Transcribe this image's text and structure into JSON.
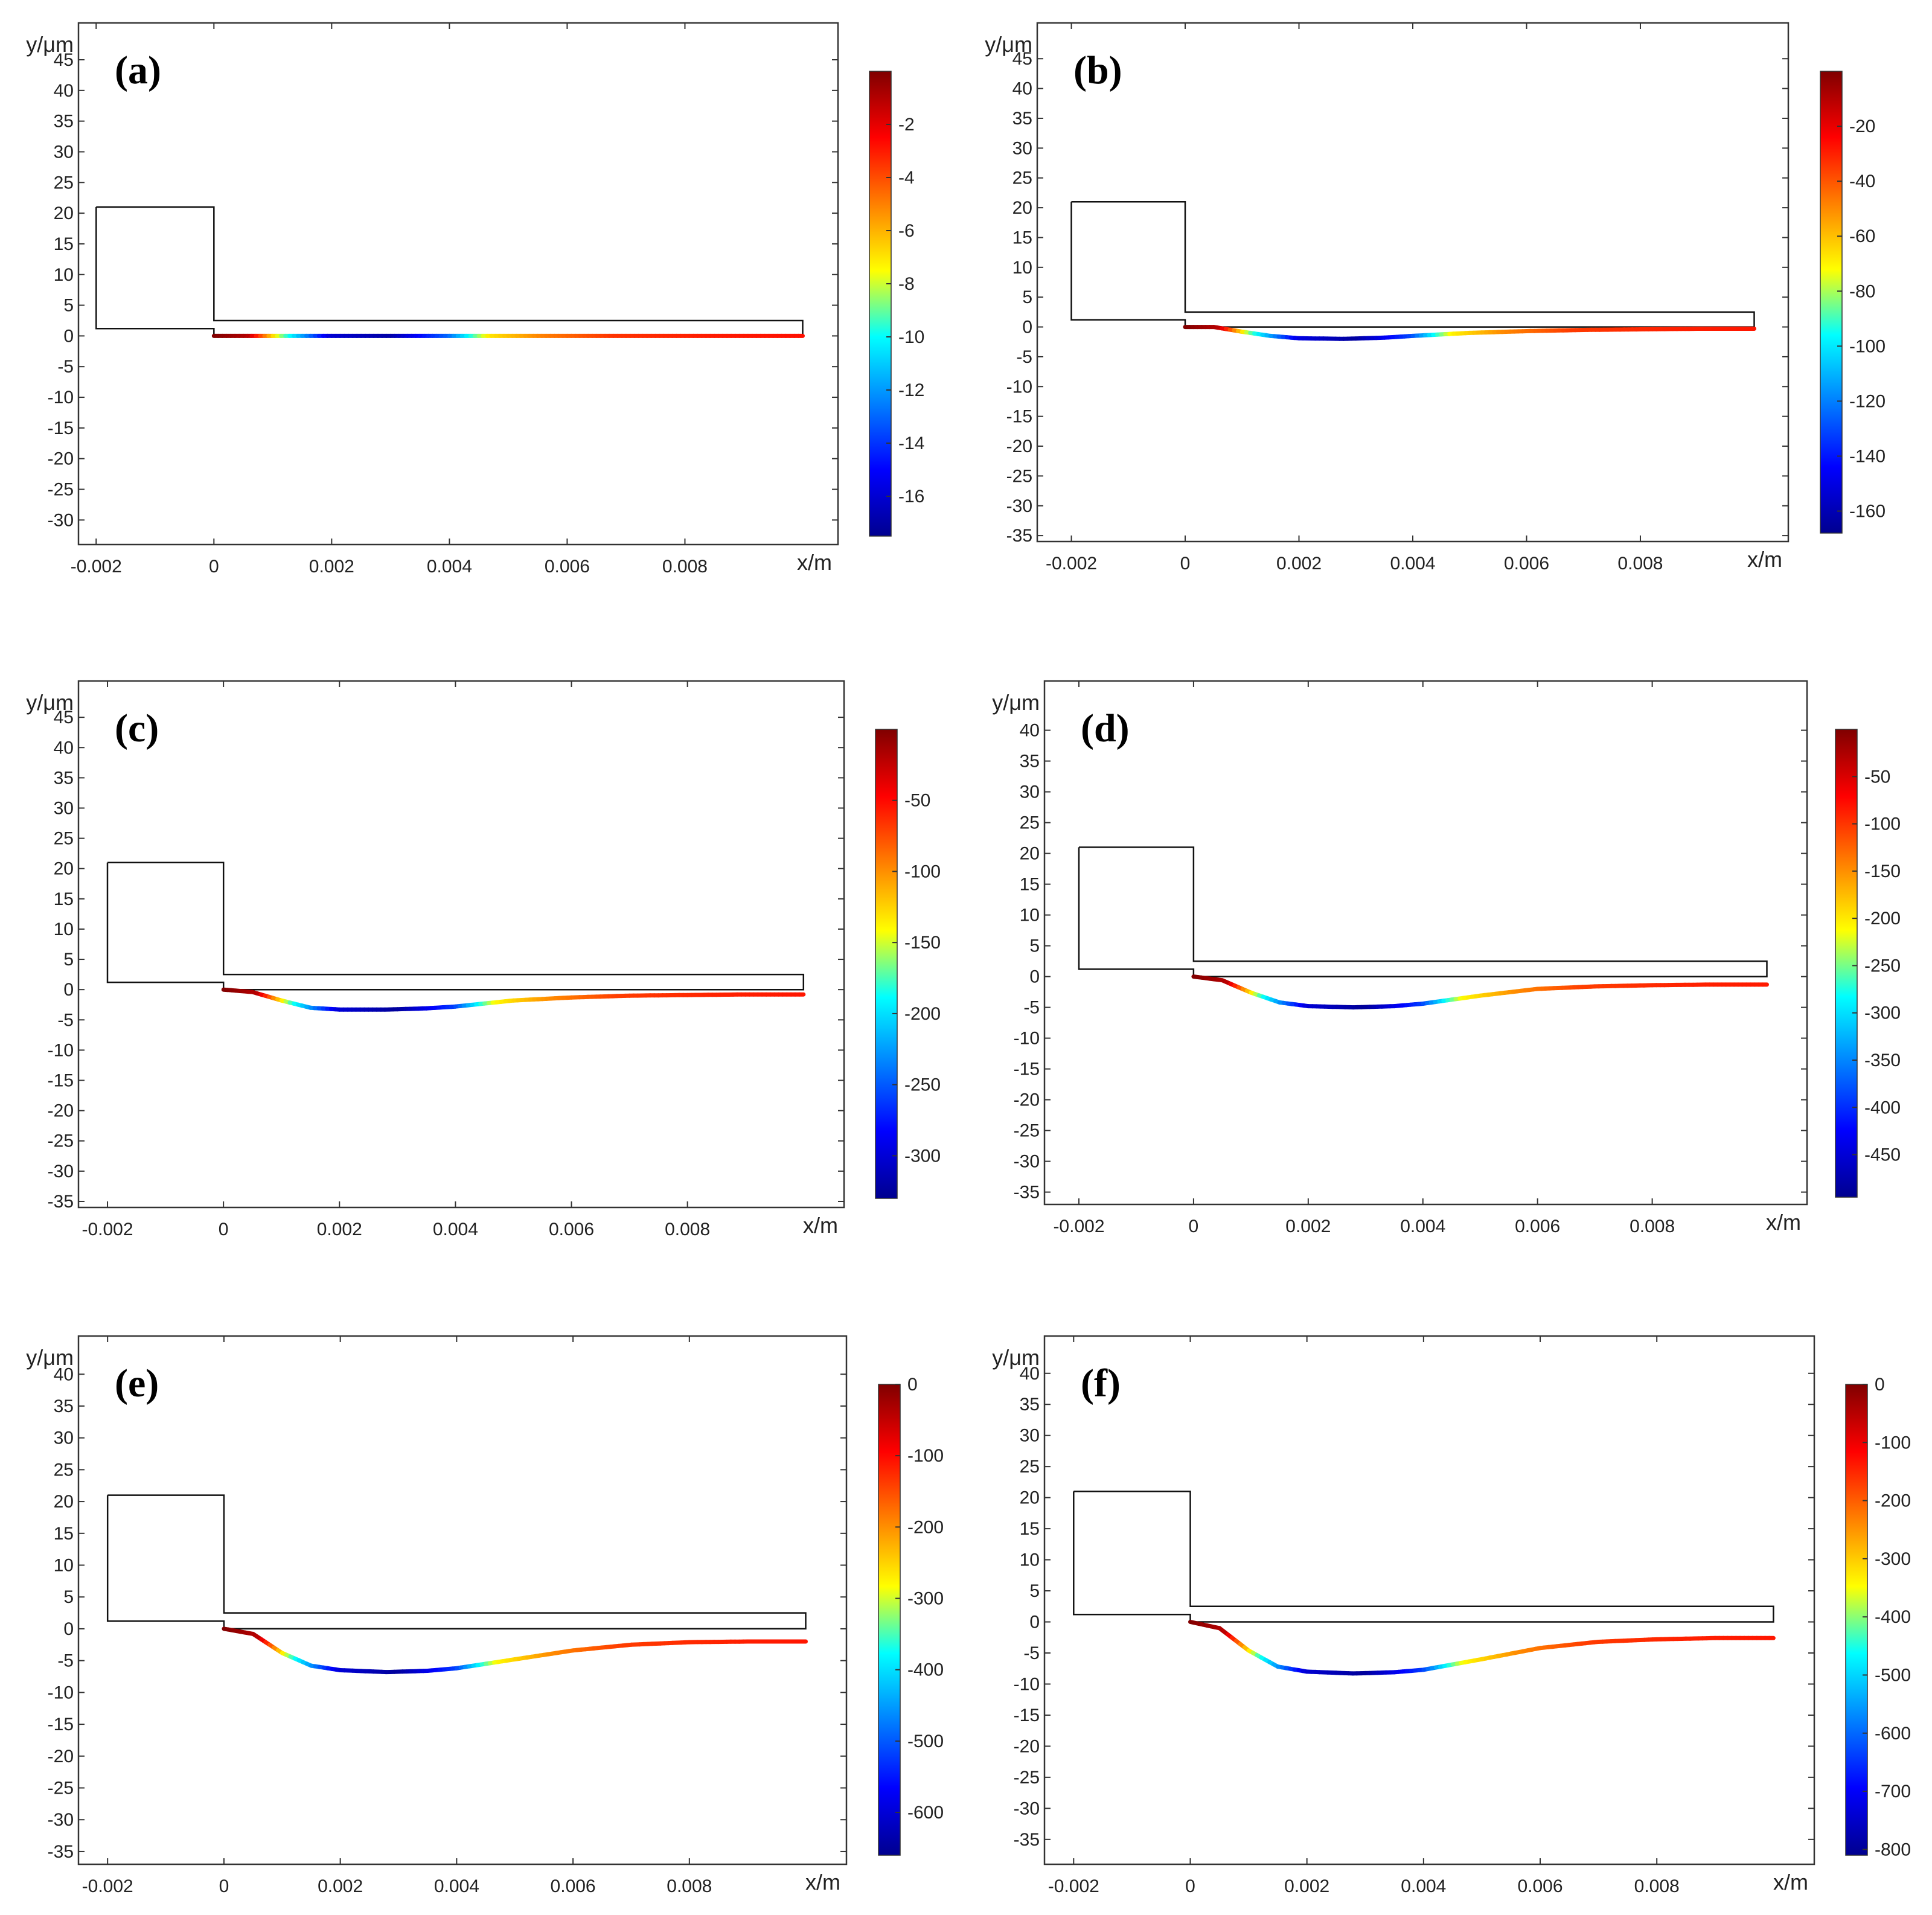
{
  "figure": {
    "panel_count": 6,
    "colormap": [
      "#800000",
      "#ff0000",
      "#ff8000",
      "#ffff00",
      "#00ffff",
      "#0080ff",
      "#0000ff",
      "#00008f"
    ]
  },
  "chart_data": [
    {
      "type": "line",
      "label": "(a)",
      "xlabel": "x/m",
      "ylabel": "y/μm",
      "xlim": [
        -0.0023,
        0.0106
      ],
      "ylim": [
        -34,
        51
      ],
      "x_ticks": [
        "-0.002",
        "0",
        "0.002",
        "0.004",
        "0.006",
        "0.008"
      ],
      "x_tick_values": [
        -0.002,
        0,
        0.002,
        0.004,
        0.006,
        0.008
      ],
      "y_ticks": [
        45,
        40,
        35,
        30,
        25,
        20,
        15,
        10,
        5,
        0,
        -5,
        -10,
        -15,
        -20,
        -25,
        -30
      ],
      "outline": {
        "x": [
          -0.002,
          0,
          0,
          0.01,
          0.01,
          0,
          0,
          -0.002,
          -0.002
        ],
        "y": [
          21,
          21,
          2.5,
          2.5,
          0,
          0,
          1.2,
          1.2,
          21
        ]
      },
      "deflection": {
        "x": [
          0,
          0.0005,
          0.001,
          0.002,
          0.003,
          0.004,
          0.005,
          0.006,
          0.007,
          0.008,
          0.009,
          0.01
        ],
        "y": [
          0,
          0,
          0,
          0,
          0,
          0,
          0,
          0,
          0,
          0,
          0,
          0
        ]
      },
      "colorbar": {
        "min": -17.5,
        "max": 0,
        "ticks": [
          -2,
          -4,
          -6,
          -8,
          -10,
          -12,
          -14,
          -16
        ]
      },
      "field": {
        "x": [
          0,
          0.0006,
          0.0012,
          0.002,
          0.003,
          0.004,
          0.0047,
          0.0056,
          0.0068,
          0.0085,
          0.01
        ],
        "v": [
          0,
          -1,
          -9,
          -16,
          -17,
          -13,
          -7,
          -5,
          -3.5,
          -3,
          -2.8
        ]
      }
    },
    {
      "type": "line",
      "label": "(b)",
      "xlabel": "x/m",
      "ylabel": "y/μm",
      "xlim": [
        -0.0026,
        0.0106
      ],
      "ylim": [
        -36,
        51
      ],
      "x_ticks": [
        "-0.002",
        "0",
        "0.002",
        "0.004",
        "0.006",
        "0.008"
      ],
      "x_tick_values": [
        -0.002,
        0,
        0.002,
        0.004,
        0.006,
        0.008
      ],
      "y_ticks": [
        45,
        40,
        35,
        30,
        25,
        20,
        15,
        10,
        5,
        0,
        -5,
        -10,
        -15,
        -20,
        -25,
        -30,
        -35
      ],
      "outline": {
        "x": [
          -0.002,
          0,
          0,
          0.01,
          0.01,
          0,
          0,
          -0.002,
          -0.002
        ],
        "y": [
          21,
          21,
          2.5,
          2.5,
          0,
          0,
          1.2,
          1.2,
          21
        ]
      },
      "deflection": {
        "x": [
          0,
          0.0005,
          0.001,
          0.0015,
          0.002,
          0.0028,
          0.0035,
          0.004,
          0.005,
          0.006,
          0.007,
          0.008,
          0.009,
          0.01
        ],
        "y": [
          0,
          0,
          -0.8,
          -1.5,
          -1.9,
          -2.0,
          -1.8,
          -1.5,
          -1.0,
          -0.7,
          -0.5,
          -0.4,
          -0.3,
          -0.3
        ]
      },
      "colorbar": {
        "min": -168,
        "max": 0,
        "ticks": [
          -20,
          -40,
          -60,
          -80,
          -100,
          -120,
          -140,
          -160
        ]
      },
      "field": {
        "x": [
          0,
          0.0006,
          0.0012,
          0.002,
          0.003,
          0.004,
          0.0047,
          0.0056,
          0.0068,
          0.0085,
          0.01
        ],
        "v": [
          0,
          -10,
          -90,
          -150,
          -165,
          -130,
          -70,
          -50,
          -35,
          -30,
          -28
        ]
      }
    },
    {
      "type": "line",
      "label": "(c)",
      "xlabel": "x/m",
      "ylabel": "y/μm",
      "xlim": [
        -0.0025,
        0.0107
      ],
      "ylim": [
        -36,
        51
      ],
      "x_ticks": [
        "-0.002",
        "0",
        "0.002",
        "0.004",
        "0.006",
        "0.008"
      ],
      "x_tick_values": [
        -0.002,
        0,
        0.002,
        0.004,
        0.006,
        0.008
      ],
      "y_ticks": [
        45,
        40,
        35,
        30,
        25,
        20,
        15,
        10,
        5,
        0,
        -5,
        -10,
        -15,
        -20,
        -25,
        -30,
        -35
      ],
      "outline": {
        "x": [
          -0.002,
          0,
          0,
          0.01,
          0.01,
          0,
          0,
          -0.002,
          -0.002
        ],
        "y": [
          21,
          21,
          2.5,
          2.5,
          0,
          0,
          1.2,
          1.2,
          21
        ]
      },
      "deflection": {
        "x": [
          0,
          0.0005,
          0.001,
          0.0015,
          0.002,
          0.0028,
          0.0035,
          0.004,
          0.005,
          0.006,
          0.007,
          0.008,
          0.009,
          0.01
        ],
        "y": [
          0,
          -0.4,
          -1.8,
          -3.0,
          -3.3,
          -3.3,
          -3.1,
          -2.8,
          -1.8,
          -1.3,
          -1.0,
          -0.9,
          -0.8,
          -0.8
        ]
      },
      "colorbar": {
        "min": -330,
        "max": 0,
        "ticks": [
          -50,
          -100,
          -150,
          -200,
          -250,
          -300
        ]
      },
      "field": {
        "x": [
          0,
          0.0006,
          0.0012,
          0.002,
          0.003,
          0.004,
          0.0047,
          0.0056,
          0.0068,
          0.0085,
          0.01
        ],
        "v": [
          0,
          -20,
          -180,
          -300,
          -325,
          -260,
          -140,
          -100,
          -70,
          -60,
          -55
        ]
      }
    },
    {
      "type": "line",
      "label": "(d)",
      "xlabel": "x/m",
      "ylabel": "y/μm",
      "xlim": [
        -0.0026,
        0.0107
      ],
      "ylim": [
        -37,
        48
      ],
      "x_ticks": [
        "-0.002",
        "0",
        "0.002",
        "0.004",
        "0.006",
        "0.008"
      ],
      "x_tick_values": [
        -0.002,
        0,
        0.002,
        0.004,
        0.006,
        0.008
      ],
      "y_ticks": [
        40,
        35,
        30,
        25,
        20,
        15,
        10,
        5,
        0,
        -5,
        -10,
        -15,
        -20,
        -25,
        -30,
        -35
      ],
      "outline": {
        "x": [
          -0.002,
          0,
          0,
          0.01,
          0.01,
          0,
          0,
          -0.002,
          -0.002
        ],
        "y": [
          21,
          21,
          2.5,
          2.5,
          0,
          0,
          1.2,
          1.2,
          21
        ]
      },
      "deflection": {
        "x": [
          0,
          0.0005,
          0.001,
          0.0015,
          0.002,
          0.0028,
          0.0035,
          0.004,
          0.005,
          0.006,
          0.007,
          0.008,
          0.009,
          0.01
        ],
        "y": [
          0,
          -0.6,
          -2.6,
          -4.2,
          -4.8,
          -5.0,
          -4.8,
          -4.4,
          -3.1,
          -2.0,
          -1.6,
          -1.4,
          -1.3,
          -1.3
        ]
      },
      "colorbar": {
        "min": -495,
        "max": 0,
        "ticks": [
          -50,
          -100,
          -150,
          -200,
          -250,
          -300,
          -350,
          -400,
          -450
        ]
      },
      "field": {
        "x": [
          0,
          0.0006,
          0.0012,
          0.002,
          0.003,
          0.004,
          0.0047,
          0.0056,
          0.0068,
          0.0085,
          0.01
        ],
        "v": [
          0,
          -30,
          -270,
          -450,
          -490,
          -390,
          -210,
          -150,
          -105,
          -90,
          -85
        ]
      }
    },
    {
      "type": "line",
      "label": "(e)",
      "xlabel": "x/m",
      "ylabel": "y/μm",
      "xlim": [
        -0.0025,
        0.0107
      ],
      "ylim": [
        -37,
        46
      ],
      "x_ticks": [
        "-0.002",
        "0",
        "0.002",
        "0.004",
        "0.006",
        "0.008"
      ],
      "x_tick_values": [
        -0.002,
        0,
        0.002,
        0.004,
        0.006,
        0.008
      ],
      "y_ticks": [
        40,
        35,
        30,
        25,
        20,
        15,
        10,
        5,
        0,
        -5,
        -10,
        -15,
        -20,
        -25,
        -30,
        -35
      ],
      "outline": {
        "x": [
          -0.002,
          0,
          0,
          0.01,
          0.01,
          0,
          0,
          -0.002,
          -0.002
        ],
        "y": [
          21,
          21,
          2.5,
          2.5,
          0,
          0,
          1.2,
          1.2,
          21
        ]
      },
      "deflection": {
        "x": [
          0,
          0.0005,
          0.001,
          0.0015,
          0.002,
          0.0028,
          0.0035,
          0.004,
          0.005,
          0.006,
          0.007,
          0.008,
          0.009,
          0.01
        ],
        "y": [
          0,
          -0.8,
          -3.8,
          -5.8,
          -6.5,
          -6.8,
          -6.6,
          -6.2,
          -4.8,
          -3.4,
          -2.5,
          -2.1,
          -2.0,
          -2.0
        ]
      },
      "colorbar": {
        "min": -660,
        "max": 0,
        "ticks": [
          0,
          -100,
          -200,
          -300,
          -400,
          -500,
          -600
        ]
      },
      "field": {
        "x": [
          0,
          0.0006,
          0.0012,
          0.002,
          0.003,
          0.004,
          0.0047,
          0.0056,
          0.0068,
          0.0085,
          0.01
        ],
        "v": [
          0,
          -40,
          -360,
          -600,
          -650,
          -520,
          -280,
          -200,
          -140,
          -120,
          -110
        ]
      }
    },
    {
      "type": "line",
      "label": "(f)",
      "xlabel": "x/m",
      "ylabel": "y/μm",
      "xlim": [
        -0.0025,
        0.0107
      ],
      "ylim": [
        -39,
        46
      ],
      "x_ticks": [
        "-0.002",
        "0",
        "0.002",
        "0.004",
        "0.006",
        "0.008"
      ],
      "x_tick_values": [
        -0.002,
        0,
        0.002,
        0.004,
        0.006,
        0.008
      ],
      "y_ticks": [
        40,
        35,
        30,
        25,
        20,
        15,
        10,
        5,
        0,
        -5,
        -10,
        -15,
        -20,
        -25,
        -30,
        -35
      ],
      "outline": {
        "x": [
          -0.002,
          0,
          0,
          0.01,
          0.01,
          0,
          0,
          -0.002,
          -0.002
        ],
        "y": [
          21,
          21,
          2.5,
          2.5,
          0,
          0,
          1.2,
          1.2,
          21
        ]
      },
      "deflection": {
        "x": [
          0,
          0.0005,
          0.001,
          0.0015,
          0.002,
          0.0028,
          0.0035,
          0.004,
          0.005,
          0.006,
          0.007,
          0.008,
          0.009,
          0.01
        ],
        "y": [
          0,
          -1.0,
          -4.6,
          -7.2,
          -8.0,
          -8.3,
          -8.1,
          -7.7,
          -6.0,
          -4.2,
          -3.2,
          -2.8,
          -2.6,
          -2.6
        ]
      },
      "colorbar": {
        "min": -810,
        "max": 0,
        "ticks": [
          0,
          -100,
          -200,
          -300,
          -400,
          -500,
          -600,
          -700,
          -800
        ]
      },
      "field": {
        "x": [
          0,
          0.0006,
          0.0012,
          0.002,
          0.003,
          0.004,
          0.0047,
          0.0056,
          0.0068,
          0.0085,
          0.01
        ],
        "v": [
          0,
          -50,
          -440,
          -740,
          -800,
          -640,
          -345,
          -245,
          -170,
          -145,
          -135
        ]
      }
    }
  ]
}
